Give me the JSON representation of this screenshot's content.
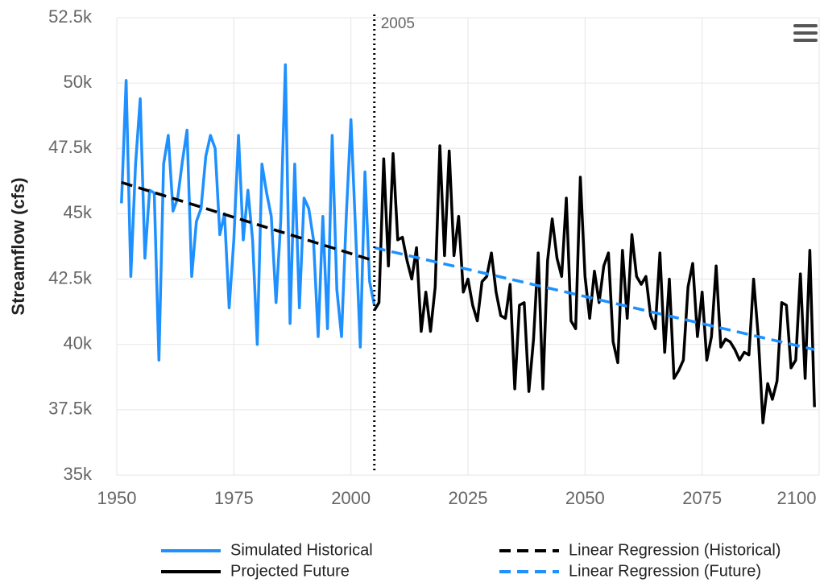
{
  "chart_data": {
    "type": "line",
    "y_label": "Streamflow (cfs)",
    "xlim": [
      1950,
      2100
    ],
    "xticks": [
      1950,
      1975,
      2000,
      2025,
      2050,
      2075,
      2100
    ],
    "ylim": [
      35000,
      52500
    ],
    "yticks": [
      {
        "value": 35000,
        "label": "35k"
      },
      {
        "value": 37500,
        "label": "37.5k"
      },
      {
        "value": 40000,
        "label": "40k"
      },
      {
        "value": 42500,
        "label": "42.5k"
      },
      {
        "value": 45000,
        "label": "45k"
      },
      {
        "value": 47500,
        "label": "47.5k"
      },
      {
        "value": 50000,
        "label": "50k"
      },
      {
        "value": 52500,
        "label": "52.5k"
      }
    ],
    "grid": true,
    "vline": {
      "value": 2005,
      "label": "2005"
    },
    "series": [
      {
        "name": "Simulated Historical",
        "color": "#1e90ff",
        "dash": false,
        "x": [
          1951,
          1952,
          1953,
          1954,
          1955,
          1956,
          1957,
          1958,
          1959,
          1960,
          1961,
          1962,
          1963,
          1964,
          1965,
          1966,
          1967,
          1968,
          1969,
          1970,
          1971,
          1972,
          1973,
          1974,
          1975,
          1976,
          1977,
          1978,
          1979,
          1980,
          1981,
          1982,
          1983,
          1984,
          1985,
          1986,
          1987,
          1988,
          1989,
          1990,
          1991,
          1992,
          1993,
          1994,
          1995,
          1996,
          1997,
          1998,
          1999,
          2000,
          2001,
          2002,
          2003,
          2004,
          2005
        ],
        "values": [
          45400,
          50100,
          42600,
          46900,
          49400,
          43300,
          45900,
          45800,
          39400,
          46900,
          48000,
          45100,
          45600,
          47000,
          48200,
          42600,
          44700,
          45200,
          47200,
          48000,
          47500,
          44200,
          45000,
          41400,
          44000,
          48000,
          44000,
          45900,
          44000,
          40000,
          46900,
          45800,
          44900,
          41600,
          44700,
          50700,
          40800,
          46900,
          41400,
          45600,
          45200,
          44000,
          40300,
          44900,
          40600,
          48000,
          42100,
          40300,
          44900,
          48600,
          44300,
          39900,
          46600,
          42400,
          41500
        ]
      },
      {
        "name": "Projected Future",
        "color": "#000000",
        "dash": false,
        "x": [
          2005,
          2006,
          2007,
          2008,
          2009,
          2010,
          2011,
          2012,
          2013,
          2014,
          2015,
          2016,
          2017,
          2018,
          2019,
          2020,
          2021,
          2022,
          2023,
          2024,
          2025,
          2026,
          2027,
          2028,
          2029,
          2030,
          2031,
          2032,
          2033,
          2034,
          2035,
          2036,
          2037,
          2038,
          2039,
          2040,
          2041,
          2042,
          2043,
          2044,
          2045,
          2046,
          2047,
          2048,
          2049,
          2050,
          2051,
          2052,
          2053,
          2054,
          2055,
          2056,
          2057,
          2058,
          2059,
          2060,
          2061,
          2062,
          2063,
          2064,
          2065,
          2066,
          2067,
          2068,
          2069,
          2070,
          2071,
          2072,
          2073,
          2074,
          2075,
          2076,
          2077,
          2078,
          2079,
          2080,
          2081,
          2082,
          2083,
          2084,
          2085,
          2086,
          2087,
          2088,
          2089,
          2090,
          2091,
          2092,
          2093,
          2094,
          2095,
          2096,
          2097,
          2098,
          2099
        ],
        "values": [
          41300,
          41600,
          47100,
          43000,
          47300,
          44000,
          44100,
          43200,
          42500,
          43700,
          40500,
          42000,
          40500,
          42200,
          47600,
          43400,
          47400,
          43400,
          44900,
          42000,
          42500,
          41500,
          40900,
          42400,
          42600,
          43500,
          42000,
          41100,
          41000,
          42300,
          38300,
          41500,
          41600,
          38200,
          40200,
          43500,
          38300,
          43200,
          44800,
          43300,
          42600,
          45600,
          40900,
          40600,
          46400,
          42600,
          41000,
          42800,
          41600,
          43000,
          43500,
          40100,
          39300,
          43600,
          41000,
          44200,
          42600,
          42300,
          42600,
          41100,
          40600,
          43500,
          39700,
          42500,
          38700,
          39000,
          39400,
          42200,
          43100,
          40300,
          42000,
          39400,
          40300,
          43000,
          39900,
          40200,
          40100,
          39800,
          39400,
          39700,
          39600,
          42500,
          40300,
          37000,
          38500,
          37900,
          38600,
          41600,
          41500,
          39100,
          39400,
          42700,
          38700,
          43600,
          37600
        ]
      },
      {
        "name": "Linear Regression (Historical)",
        "color": "#000000",
        "dash": true,
        "x": [
          1951,
          2005
        ],
        "values": [
          46200,
          43200
        ]
      },
      {
        "name": "Linear Regression (Future)",
        "color": "#1e90ff",
        "dash": true,
        "x": [
          2005,
          2099
        ],
        "values": [
          43700,
          39800
        ]
      }
    ]
  }
}
